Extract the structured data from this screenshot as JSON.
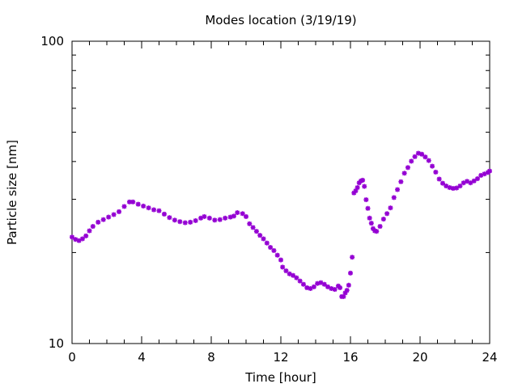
{
  "chart_data": {
    "type": "scatter",
    "title": "Modes location (3/19/19)",
    "xlabel": "Time [hour]",
    "ylabel": "Particle size [nm]",
    "xlim": [
      0,
      24
    ],
    "ylim": [
      10,
      100
    ],
    "yscale": "log",
    "grid": false,
    "legend": "none",
    "x_ticks": [
      {
        "value": 0,
        "label": "0"
      },
      {
        "value": 4,
        "label": "4"
      },
      {
        "value": 8,
        "label": "8"
      },
      {
        "value": 12,
        "label": "12"
      },
      {
        "value": 16,
        "label": "16"
      },
      {
        "value": 20,
        "label": "20"
      },
      {
        "value": 24,
        "label": "24"
      }
    ],
    "y_ticks": [
      {
        "value": 10,
        "label": "10"
      },
      {
        "value": 100,
        "label": "100"
      }
    ],
    "series": [
      {
        "color": "#9400d3",
        "marker": "star",
        "points": [
          [
            0.0,
            22.5
          ],
          [
            0.2,
            22.1
          ],
          [
            0.4,
            21.9
          ],
          [
            0.6,
            22.2
          ],
          [
            0.8,
            22.7
          ],
          [
            1.0,
            23.6
          ],
          [
            1.2,
            24.4
          ],
          [
            1.5,
            25.2
          ],
          [
            1.8,
            25.7
          ],
          [
            2.1,
            26.2
          ],
          [
            2.4,
            26.7
          ],
          [
            2.7,
            27.3
          ],
          [
            3.0,
            28.4
          ],
          [
            3.3,
            29.4
          ],
          [
            3.5,
            29.4
          ],
          [
            3.8,
            28.9
          ],
          [
            4.1,
            28.5
          ],
          [
            4.4,
            28.1
          ],
          [
            4.7,
            27.7
          ],
          [
            5.0,
            27.5
          ],
          [
            5.3,
            26.8
          ],
          [
            5.6,
            26.1
          ],
          [
            5.9,
            25.6
          ],
          [
            6.2,
            25.3
          ],
          [
            6.5,
            25.1
          ],
          [
            6.8,
            25.2
          ],
          [
            7.1,
            25.5
          ],
          [
            7.4,
            26.0
          ],
          [
            7.6,
            26.3
          ],
          [
            7.9,
            26.0
          ],
          [
            8.2,
            25.6
          ],
          [
            8.5,
            25.7
          ],
          [
            8.8,
            26.0
          ],
          [
            9.1,
            26.2
          ],
          [
            9.3,
            26.4
          ],
          [
            9.5,
            27.1
          ],
          [
            9.8,
            26.9
          ],
          [
            10.0,
            26.3
          ],
          [
            10.2,
            24.9
          ],
          [
            10.4,
            24.2
          ],
          [
            10.6,
            23.5
          ],
          [
            10.8,
            22.8
          ],
          [
            11.0,
            22.2
          ],
          [
            11.2,
            21.5
          ],
          [
            11.4,
            20.8
          ],
          [
            11.6,
            20.3
          ],
          [
            11.8,
            19.6
          ],
          [
            12.0,
            18.9
          ],
          [
            12.1,
            17.9
          ],
          [
            12.3,
            17.4
          ],
          [
            12.5,
            17.0
          ],
          [
            12.7,
            16.8
          ],
          [
            12.9,
            16.5
          ],
          [
            13.1,
            16.1
          ],
          [
            13.3,
            15.7
          ],
          [
            13.5,
            15.3
          ],
          [
            13.7,
            15.2
          ],
          [
            13.9,
            15.4
          ],
          [
            14.1,
            15.8
          ],
          [
            14.3,
            15.9
          ],
          [
            14.5,
            15.7
          ],
          [
            14.7,
            15.4
          ],
          [
            14.9,
            15.2
          ],
          [
            15.1,
            15.1
          ],
          [
            15.3,
            15.5
          ],
          [
            15.4,
            15.3
          ],
          [
            15.5,
            14.3
          ],
          [
            15.6,
            14.3
          ],
          [
            15.7,
            14.7
          ],
          [
            15.8,
            15.0
          ],
          [
            15.9,
            15.6
          ],
          [
            16.0,
            17.1
          ],
          [
            16.1,
            19.3
          ],
          [
            16.2,
            31.5
          ],
          [
            16.3,
            32.0
          ],
          [
            16.4,
            32.8
          ],
          [
            16.5,
            34.0
          ],
          [
            16.6,
            34.5
          ],
          [
            16.7,
            34.7
          ],
          [
            16.8,
            33.1
          ],
          [
            16.9,
            29.9
          ],
          [
            17.0,
            28.0
          ],
          [
            17.1,
            26.0
          ],
          [
            17.2,
            25.0
          ],
          [
            17.3,
            24.0
          ],
          [
            17.4,
            23.6
          ],
          [
            17.5,
            23.5
          ],
          [
            17.7,
            24.4
          ],
          [
            17.9,
            25.8
          ],
          [
            18.1,
            26.9
          ],
          [
            18.3,
            28.1
          ],
          [
            18.5,
            30.4
          ],
          [
            18.7,
            32.3
          ],
          [
            18.9,
            34.3
          ],
          [
            19.1,
            36.6
          ],
          [
            19.3,
            38.2
          ],
          [
            19.5,
            40.1
          ],
          [
            19.7,
            41.5
          ],
          [
            19.9,
            42.6
          ],
          [
            20.1,
            42.3
          ],
          [
            20.3,
            41.4
          ],
          [
            20.5,
            40.3
          ],
          [
            20.7,
            38.6
          ],
          [
            20.9,
            36.9
          ],
          [
            21.1,
            35.0
          ],
          [
            21.3,
            33.9
          ],
          [
            21.5,
            33.2
          ],
          [
            21.7,
            32.8
          ],
          [
            21.9,
            32.6
          ],
          [
            22.1,
            32.7
          ],
          [
            22.3,
            33.2
          ],
          [
            22.5,
            34.0
          ],
          [
            22.7,
            34.4
          ],
          [
            22.9,
            34.0
          ],
          [
            23.1,
            34.5
          ],
          [
            23.3,
            35.1
          ],
          [
            23.5,
            36.0
          ],
          [
            23.7,
            36.4
          ],
          [
            23.9,
            36.8
          ],
          [
            24.0,
            37.2
          ]
        ]
      }
    ]
  }
}
